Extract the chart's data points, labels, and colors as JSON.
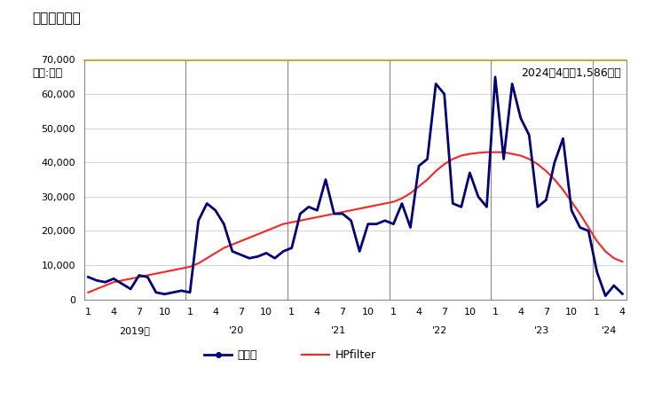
{
  "title": "輸入額の推移",
  "unit_label": "単位:万円",
  "annotation": "2024年4月：1,586万円",
  "ylim": [
    0,
    70000
  ],
  "yticks": [
    0,
    10000,
    20000,
    30000,
    40000,
    50000,
    60000,
    70000
  ],
  "legend_entries": [
    "輸入額",
    "HPfilter"
  ],
  "line_color": "#000080",
  "hp_color": "#FF2222",
  "imports": [
    6500,
    5500,
    5000,
    6000,
    4500,
    3000,
    7000,
    6500,
    2000,
    1500,
    2000,
    2500,
    2000,
    23000,
    28000,
    26000,
    22000,
    14000,
    13000,
    12000,
    12500,
    13500,
    12000,
    14000,
    15000,
    25000,
    27000,
    26000,
    35000,
    25000,
    25000,
    23000,
    14000,
    22000,
    22000,
    23000,
    22000,
    28000,
    21000,
    39000,
    41000,
    63000,
    60000,
    28000,
    27000,
    37000,
    30000,
    27000,
    65000,
    41000,
    63000,
    53000,
    48000,
    27000,
    29000,
    40000,
    47000,
    26000,
    21000,
    20000,
    8000,
    1000,
    4000,
    1586
  ],
  "hp": [
    2000,
    3000,
    4000,
    5000,
    5500,
    6000,
    6500,
    7000,
    7500,
    8000,
    8500,
    9000,
    9500,
    10500,
    12000,
    13500,
    15000,
    16000,
    17000,
    18000,
    19000,
    20000,
    21000,
    22000,
    22500,
    23000,
    23500,
    24000,
    24500,
    25000,
    25500,
    26000,
    26500,
    27000,
    27500,
    28000,
    28500,
    29500,
    31000,
    33000,
    35000,
    37500,
    39500,
    41000,
    42000,
    42500,
    42800,
    43000,
    43000,
    43000,
    42500,
    42000,
    41000,
    39500,
    37500,
    35000,
    32000,
    28500,
    25000,
    21000,
    17000,
    14000,
    12000,
    11000
  ],
  "x_tick_positions": [
    0,
    3,
    6,
    9,
    12,
    15,
    18,
    21,
    24,
    27,
    30,
    33,
    36,
    39,
    42,
    45,
    48,
    51,
    54,
    57,
    60,
    63
  ],
  "x_tick_labels": [
    "1",
    "4",
    "7",
    "10",
    "1",
    "4",
    "7",
    "10",
    "1",
    "4",
    "7",
    "10",
    "1",
    "4",
    "7",
    "10",
    "1",
    "4",
    "7",
    "10",
    "1",
    "4"
  ],
  "year_tick_positions": [
    0,
    12,
    24,
    36,
    48,
    60
  ],
  "year_labels": [
    "2019年",
    "'20",
    "'21",
    "'22",
    "'23",
    "'24"
  ],
  "year_label_offsets": [
    5.5,
    5.5,
    5.5,
    5.5,
    5.5,
    1.5
  ],
  "separator_positions": [
    11.5,
    23.5,
    35.5,
    47.5,
    59.5
  ],
  "background_color": "#FFFFFF",
  "plot_bg_color": "#FFFFFF",
  "grid_color": "#CCCCCC",
  "top_border_color": "#C8A000",
  "title_fontsize": 11,
  "annotation_fontsize": 9,
  "tick_fontsize": 8,
  "ytick_fontsize": 8
}
